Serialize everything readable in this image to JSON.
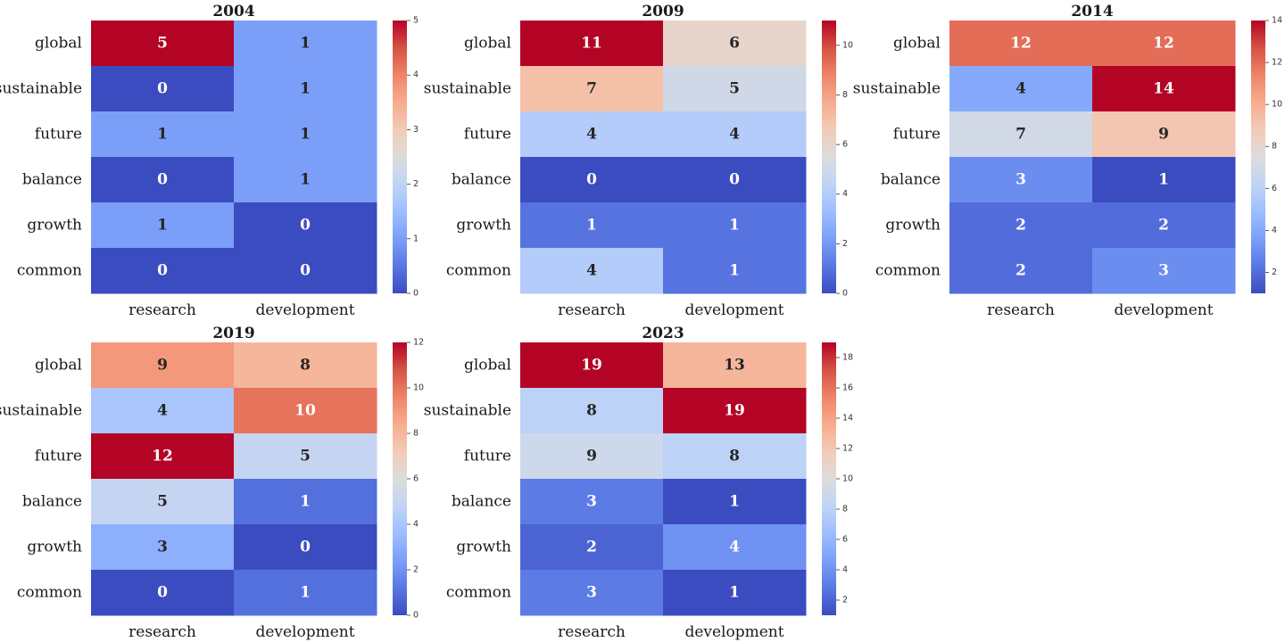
{
  "chart_data": [
    {
      "type": "heatmap",
      "title": "2004",
      "rows": [
        "global",
        "sustainable",
        "future",
        "balance",
        "growth",
        "common"
      ],
      "columns": [
        "research",
        "development"
      ],
      "values": [
        [
          5,
          1
        ],
        [
          0,
          1
        ],
        [
          1,
          1
        ],
        [
          0,
          1
        ],
        [
          1,
          0
        ],
        [
          0,
          0
        ]
      ],
      "colorbar": {
        "min": 0,
        "max": 5,
        "ticks": [
          0,
          1,
          2,
          3,
          4,
          5
        ]
      }
    },
    {
      "type": "heatmap",
      "title": "2009",
      "rows": [
        "global",
        "sustainable",
        "future",
        "balance",
        "growth",
        "common"
      ],
      "columns": [
        "research",
        "development"
      ],
      "values": [
        [
          11,
          6
        ],
        [
          7,
          5
        ],
        [
          4,
          4
        ],
        [
          0,
          0
        ],
        [
          1,
          1
        ],
        [
          4,
          1
        ]
      ],
      "colorbar": {
        "min": 0,
        "max": 11,
        "ticks": [
          0,
          2,
          4,
          6,
          8,
          10
        ]
      }
    },
    {
      "type": "heatmap",
      "title": "2014",
      "rows": [
        "global",
        "sustainable",
        "future",
        "balance",
        "growth",
        "common"
      ],
      "columns": [
        "research",
        "development"
      ],
      "values": [
        [
          12,
          12
        ],
        [
          4,
          14
        ],
        [
          7,
          9
        ],
        [
          3,
          1
        ],
        [
          2,
          2
        ],
        [
          2,
          3
        ]
      ],
      "colorbar": {
        "min": 1,
        "max": 14,
        "ticks": [
          2,
          4,
          6,
          8,
          10,
          12,
          14
        ]
      }
    },
    {
      "type": "heatmap",
      "title": "2019",
      "rows": [
        "global",
        "sustainable",
        "future",
        "balance",
        "growth",
        "common"
      ],
      "columns": [
        "research",
        "development"
      ],
      "values": [
        [
          9,
          8
        ],
        [
          4,
          10
        ],
        [
          12,
          5
        ],
        [
          5,
          1
        ],
        [
          3,
          0
        ],
        [
          0,
          1
        ]
      ],
      "colorbar": {
        "min": 0,
        "max": 12,
        "ticks": [
          0,
          2,
          4,
          6,
          8,
          10,
          12
        ]
      }
    },
    {
      "type": "heatmap",
      "title": "2023",
      "rows": [
        "global",
        "sustainable",
        "future",
        "balance",
        "growth",
        "common"
      ],
      "columns": [
        "research",
        "development"
      ],
      "values": [
        [
          19,
          13
        ],
        [
          8,
          19
        ],
        [
          9,
          8
        ],
        [
          3,
          1
        ],
        [
          2,
          4
        ],
        [
          3,
          1
        ]
      ],
      "colorbar": {
        "min": 1,
        "max": 19,
        "ticks": [
          2,
          4,
          6,
          8,
          10,
          12,
          14,
          16,
          18
        ]
      }
    }
  ],
  "colormap": {
    "name": "coolwarm",
    "stops": [
      "#3b4cc0",
      "#5977e3",
      "#7b9ff9",
      "#9ebeff",
      "#c0d4f5",
      "#dddcdc",
      "#f2cbb7",
      "#f7ac8e",
      "#ee8468",
      "#d65244",
      "#b40426"
    ]
  }
}
